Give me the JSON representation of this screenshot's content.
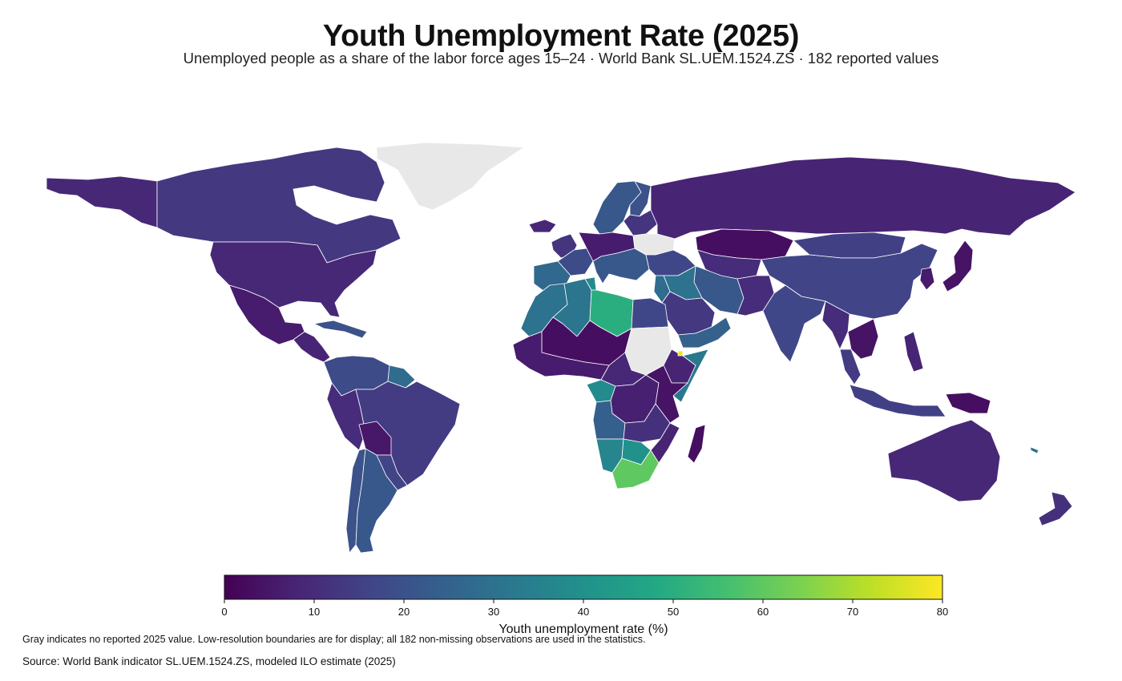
{
  "map": {
    "title": "Youth Unemployment Rate (2025)",
    "subtitle": "Unemployed people as a share of the labor force ages 15–24 · World Bank SL.UEM.1524.ZS · 182 reported values",
    "no_data_color": "#e8e8e8",
    "border_color": "#ffffff",
    "colormap": "viridis",
    "colorbar": {
      "title": "Youth unemployment rate (%)",
      "min": 0,
      "max": 80,
      "ticks": [
        "0",
        "10",
        "20",
        "30",
        "40",
        "50",
        "60",
        "70",
        "80"
      ],
      "stops": [
        "#440154",
        "#482475",
        "#414487",
        "#355f8d",
        "#2a788e",
        "#21918c",
        "#22a884",
        "#44bf70",
        "#7ad151",
        "#bddf26",
        "#fde725"
      ]
    },
    "regions": [
      {
        "name": "Canada",
        "value": 13
      },
      {
        "name": "United States",
        "value": 9
      },
      {
        "name": "Alaska",
        "value": 9
      },
      {
        "name": "Mexico",
        "value": 6
      },
      {
        "name": "Central America",
        "value": 8
      },
      {
        "name": "Cuba & Caribbean",
        "value": 20
      },
      {
        "name": "Colombia & Venezuela",
        "value": 18
      },
      {
        "name": "Guianas",
        "value": 28
      },
      {
        "name": "Brazil",
        "value": 14
      },
      {
        "name": "Peru & Ecuador",
        "value": 10
      },
      {
        "name": "Bolivia",
        "value": 5
      },
      {
        "name": "Paraguay & Uruguay",
        "value": 16
      },
      {
        "name": "Chile",
        "value": 20
      },
      {
        "name": "Argentina",
        "value": 22
      },
      {
        "name": "Greenland",
        "value": null
      },
      {
        "name": "Iceland",
        "value": 9
      },
      {
        "name": "Ireland & UK",
        "value": 12
      },
      {
        "name": "Scandinavia",
        "value": 22
      },
      {
        "name": "Finland",
        "value": 20
      },
      {
        "name": "Iberia",
        "value": 27
      },
      {
        "name": "France & Benelux",
        "value": 18
      },
      {
        "name": "Central Europe",
        "value": 6
      },
      {
        "name": "Italy & Balkans",
        "value": 22
      },
      {
        "name": "Ukraine & Belarus",
        "value": null
      },
      {
        "name": "Eastern Europe",
        "value": 12
      },
      {
        "name": "Russia",
        "value": 8
      },
      {
        "name": "Turkey & Caucasus",
        "value": 17
      },
      {
        "name": "Kazakhstan",
        "value": 3
      },
      {
        "name": "Central Asia",
        "value": 10
      },
      {
        "name": "Mongolia",
        "value": 15
      },
      {
        "name": "China",
        "value": 16
      },
      {
        "name": "Korea",
        "value": 6
      },
      {
        "name": "Japan",
        "value": 4
      },
      {
        "name": "Morocco & Western Sahara",
        "value": 30
      },
      {
        "name": "Algeria",
        "value": 31
      },
      {
        "name": "Tunisia",
        "value": 38
      },
      {
        "name": "Libya",
        "value": 50
      },
      {
        "name": "Egypt",
        "value": 17
      },
      {
        "name": "Sahel",
        "value": 3
      },
      {
        "name": "West Africa",
        "value": 6
      },
      {
        "name": "Sudan",
        "value": null
      },
      {
        "name": "Ethiopia",
        "value": 8
      },
      {
        "name": "Horn of Africa",
        "value": 32
      },
      {
        "name": "Djibouti",
        "value": 78
      },
      {
        "name": "Central Africa",
        "value": 9
      },
      {
        "name": "Gabon & Congo",
        "value": 38
      },
      {
        "name": "DR Congo",
        "value": 7
      },
      {
        "name": "East Africa",
        "value": 4
      },
      {
        "name": "Angola",
        "value": 24
      },
      {
        "name": "Zambia & Malawi",
        "value": 11
      },
      {
        "name": "Namibia",
        "value": 36
      },
      {
        "name": "Botswana & Zimbabwe",
        "value": 40
      },
      {
        "name": "Mozambique",
        "value": 8
      },
      {
        "name": "South Africa",
        "value": 60
      },
      {
        "name": "Madagascar",
        "value": 3
      },
      {
        "name": "Middle East",
        "value": 28
      },
      {
        "name": "Iraq & Syria",
        "value": 30
      },
      {
        "name": "Iran",
        "value": 22
      },
      {
        "name": "Saudi Arabia",
        "value": 13
      },
      {
        "name": "Oman & Yemen",
        "value": 25
      },
      {
        "name": "Afghanistan & Pakistan",
        "value": 10
      },
      {
        "name": "India",
        "value": 17
      },
      {
        "name": "Myanmar & Bangladesh",
        "value": 10
      },
      {
        "name": "Indochina",
        "value": 4
      },
      {
        "name": "Malaysia",
        "value": 14
      },
      {
        "name": "Indonesia",
        "value": 15
      },
      {
        "name": "Philippines",
        "value": 8
      },
      {
        "name": "Papua New Guinea",
        "value": 3
      },
      {
        "name": "Australia",
        "value": 9
      },
      {
        "name": "New Zealand",
        "value": 11
      },
      {
        "name": "New Caledonia",
        "value": 28
      }
    ]
  },
  "footer": {
    "note": "Gray indicates no reported 2025 value. Low-resolution boundaries are for display; all 182 non-missing observations are used in the statistics.",
    "source": "Source: World Bank indicator SL.UEM.1524.ZS, modeled ILO estimate (2025)"
  }
}
